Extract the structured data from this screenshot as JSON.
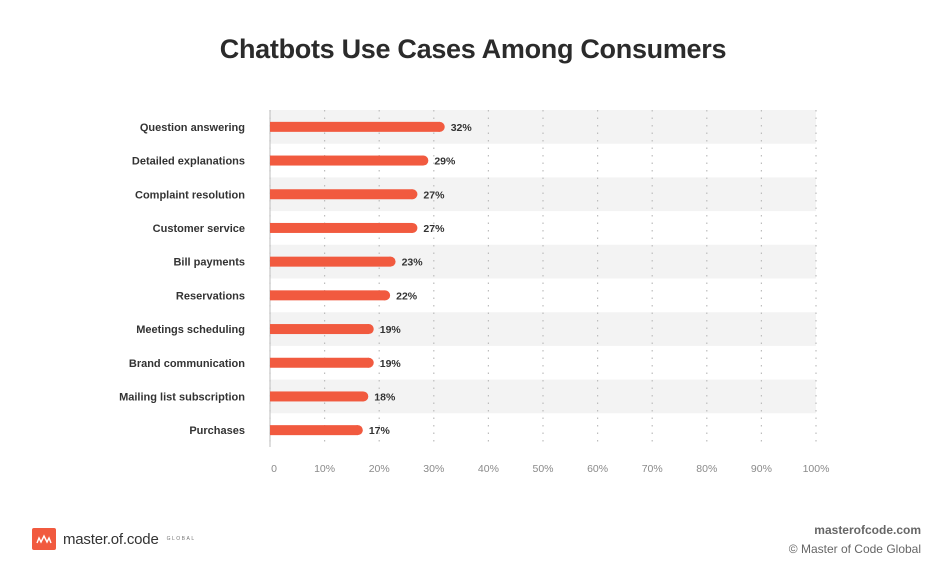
{
  "chart_data": {
    "type": "bar",
    "orientation": "horizontal",
    "title": "Chatbots Use Cases Among Consumers",
    "categories": [
      "Question answering",
      "Detailed explanations",
      "Complaint resolution",
      "Customer service",
      "Bill payments",
      "Reservations",
      "Meetings scheduling",
      "Brand communication",
      "Mailing list subscription",
      "Purchases"
    ],
    "values": [
      32,
      29,
      27,
      27,
      23,
      22,
      19,
      19,
      18,
      17
    ],
    "value_labels": [
      "32%",
      "29%",
      "27%",
      "27%",
      "23%",
      "22%",
      "19%",
      "19%",
      "18%",
      "17%"
    ],
    "xlim": [
      0,
      100
    ],
    "x_ticks": [
      "0",
      "10%",
      "20%",
      "30%",
      "40%",
      "50%",
      "60%",
      "70%",
      "80%",
      "90%",
      "100%"
    ],
    "grid": "vertical dotted",
    "bar_color": "#f15a3f",
    "band_color": "#f3f3f3"
  },
  "footer": {
    "logo_text": "master.of.code",
    "logo_subtext": "GLOBAL",
    "site": "masterofcode.com",
    "copyright": "© Master of Code Global"
  }
}
